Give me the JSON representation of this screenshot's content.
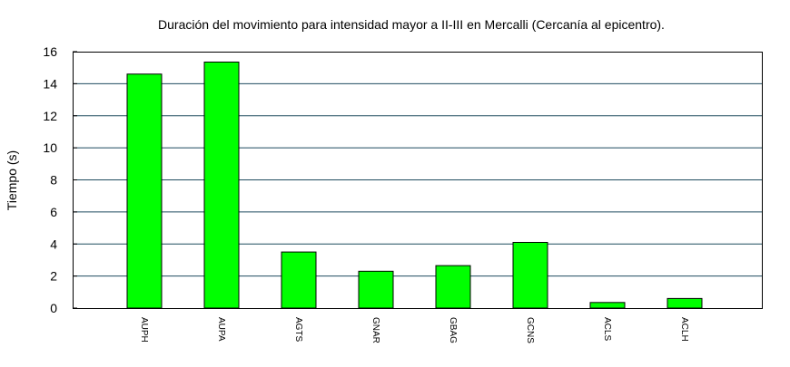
{
  "chart_data": {
    "type": "bar",
    "title": "Duración del movimiento para intensidad mayor a II-III en Mercalli (Cercanía al epicentro).",
    "xlabel": "",
    "ylabel": "Tiempo (s)",
    "ylim": [
      0,
      16
    ],
    "yticks": [
      0,
      2,
      4,
      6,
      8,
      10,
      12,
      14,
      16
    ],
    "categories": [
      "AUPH",
      "AUPA",
      "AGTS",
      "GNAR",
      "GBAG",
      "GCNS",
      "ACLS",
      "ACLH"
    ],
    "values": [
      14.6,
      15.35,
      3.5,
      2.3,
      2.65,
      4.1,
      0.35,
      0.6
    ],
    "grid": true,
    "legend": "none",
    "colors": {
      "bar_fill": "#00ff00",
      "bar_stroke": "#000000",
      "grid_line": "#1f4b5f",
      "frame": "#000000"
    }
  }
}
